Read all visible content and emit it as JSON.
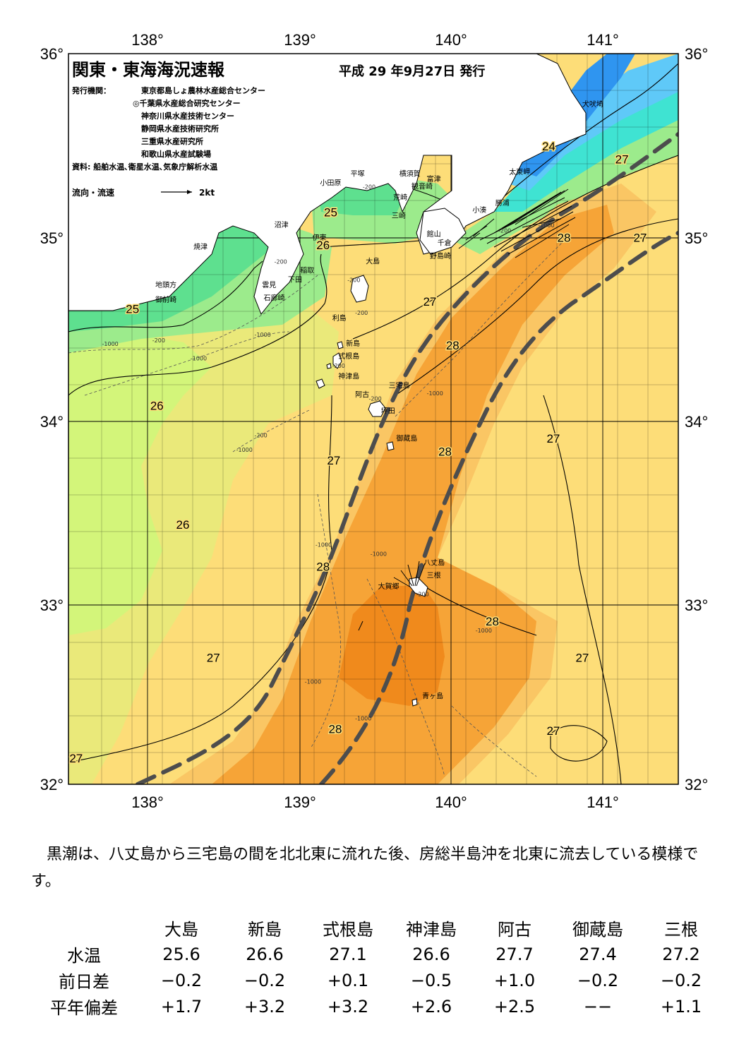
{
  "header": {
    "title": "関東・東海海況速報",
    "date": "平成 29 年9月27日 発行",
    "issuer_label": "発行機関：",
    "issuers": [
      "東京都島しょ農林水産総合センター",
      "◎千葉県水産総合研究センター",
      "神奈川県水産技術センター",
      "静岡県水産技術研究所",
      "三重県水産研究所",
      "和歌山県水産試験場"
    ],
    "source": "資料: 船舶水温､衛星水温､気象庁解析水温",
    "legend_label": "流向・流速",
    "legend_scale": "2kt"
  },
  "axes": {
    "lon_ticks": [
      "138°",
      "139°",
      "140°",
      "141°"
    ],
    "lat_ticks": [
      "36°",
      "35°",
      "34°",
      "33°",
      "32°"
    ]
  },
  "places": [
    {
      "name": "犬吠埼",
      "lon": 140.87,
      "lat": 35.71
    },
    {
      "name": "太東岬",
      "lon": 140.39,
      "lat": 35.34
    },
    {
      "name": "勝浦",
      "lon": 140.3,
      "lat": 35.17
    },
    {
      "name": "小湊",
      "lon": 140.15,
      "lat": 35.13
    },
    {
      "name": "富津",
      "lon": 139.85,
      "lat": 35.3
    },
    {
      "name": "館山",
      "lon": 139.85,
      "lat": 35.0
    },
    {
      "name": "千倉",
      "lon": 139.92,
      "lat": 34.95
    },
    {
      "name": "野島崎",
      "lon": 139.87,
      "lat": 34.88
    },
    {
      "name": "横須賀",
      "lon": 139.67,
      "lat": 35.33
    },
    {
      "name": "観音崎",
      "lon": 139.75,
      "lat": 35.26
    },
    {
      "name": "荒崎",
      "lon": 139.63,
      "lat": 35.2
    },
    {
      "name": "三崎",
      "lon": 139.62,
      "lat": 35.1
    },
    {
      "name": "平塚",
      "lon": 139.35,
      "lat": 35.33
    },
    {
      "name": "小田原",
      "lon": 139.15,
      "lat": 35.28
    },
    {
      "name": "沼津",
      "lon": 138.85,
      "lat": 35.05
    },
    {
      "name": "伊東",
      "lon": 139.1,
      "lat": 34.98
    },
    {
      "name": "焼津",
      "lon": 138.32,
      "lat": 34.93
    },
    {
      "name": "稲取",
      "lon": 139.02,
      "lat": 34.8
    },
    {
      "name": "下田",
      "lon": 138.94,
      "lat": 34.75
    },
    {
      "name": "雲見",
      "lon": 138.77,
      "lat": 34.72
    },
    {
      "name": "石廊崎",
      "lon": 138.78,
      "lat": 34.65
    },
    {
      "name": "地頭方",
      "lon": 138.07,
      "lat": 34.72
    },
    {
      "name": "御前崎",
      "lon": 138.07,
      "lat": 34.64
    },
    {
      "name": "大島",
      "lon": 139.45,
      "lat": 34.85
    },
    {
      "name": "利島",
      "lon": 139.23,
      "lat": 34.54
    },
    {
      "name": "新島",
      "lon": 139.32,
      "lat": 34.4
    },
    {
      "name": "式根島",
      "lon": 139.27,
      "lat": 34.33
    },
    {
      "name": "神津島",
      "lon": 139.27,
      "lat": 34.22
    },
    {
      "name": "三宅島",
      "lon": 139.6,
      "lat": 34.17
    },
    {
      "name": "阿古",
      "lon": 139.38,
      "lat": 34.12
    },
    {
      "name": "坪田",
      "lon": 139.55,
      "lat": 34.03
    },
    {
      "name": "御蔵島",
      "lon": 139.65,
      "lat": 33.88
    },
    {
      "name": "八丈島",
      "lon": 139.83,
      "lat": 33.2
    },
    {
      "name": "三根",
      "lon": 139.85,
      "lat": 33.13
    },
    {
      "name": "大賀郷",
      "lon": 139.53,
      "lat": 33.07
    },
    {
      "name": "青ヶ島",
      "lon": 139.82,
      "lat": 32.47
    }
  ],
  "temperature_labels": [
    {
      "text": "24",
      "lon": 140.65,
      "lat": 35.47
    },
    {
      "text": "25",
      "lon": 139.22,
      "lat": 35.11
    },
    {
      "text": "25",
      "lon": 137.92,
      "lat": 34.58
    },
    {
      "text": "26",
      "lon": 139.17,
      "lat": 34.93
    },
    {
      "text": "26",
      "lon": 138.08,
      "lat": 34.05
    },
    {
      "text": "26",
      "lon": 138.25,
      "lat": 33.4
    },
    {
      "text": "27",
      "lon": 141.13,
      "lat": 35.4
    },
    {
      "text": "27",
      "lon": 141.25,
      "lat": 34.97
    },
    {
      "text": "27",
      "lon": 139.87,
      "lat": 34.62
    },
    {
      "text": "27",
      "lon": 139.24,
      "lat": 33.75
    },
    {
      "text": "27",
      "lon": 140.68,
      "lat": 33.87
    },
    {
      "text": "27",
      "lon": 138.45,
      "lat": 32.67
    },
    {
      "text": "27",
      "lon": 140.87,
      "lat": 32.67
    },
    {
      "text": "27",
      "lon": 140.68,
      "lat": 32.27
    },
    {
      "text": "27",
      "lon": 137.55,
      "lat": 32.12
    },
    {
      "text": "28",
      "lon": 140.75,
      "lat": 34.97
    },
    {
      "text": "28",
      "lon": 140.02,
      "lat": 34.38
    },
    {
      "text": "28",
      "lon": 139.97,
      "lat": 33.8
    },
    {
      "text": "28",
      "lon": 139.17,
      "lat": 33.17
    },
    {
      "text": "28",
      "lon": 140.28,
      "lat": 32.87
    },
    {
      "text": "28",
      "lon": 139.25,
      "lat": 32.28
    }
  ],
  "depth_labels": [
    {
      "text": "-200",
      "lon": 139.43,
      "lat": 35.26
    },
    {
      "text": "-200",
      "lon": 139.33,
      "lat": 34.75
    },
    {
      "text": "-200",
      "lon": 139.38,
      "lat": 34.57
    },
    {
      "text": "-200",
      "lon": 138.85,
      "lat": 34.85
    },
    {
      "text": "-200",
      "lon": 138.05,
      "lat": 34.42
    },
    {
      "text": "-200",
      "lon": 138.72,
      "lat": 33.9
    },
    {
      "text": "-200",
      "lon": 139.23,
      "lat": 34.28
    },
    {
      "text": "-200",
      "lon": 139.47,
      "lat": 34.1
    },
    {
      "text": "-200",
      "lon": 139.78,
      "lat": 33.03
    },
    {
      "text": "-200",
      "lon": 140.32,
      "lat": 35.02
    },
    {
      "text": "-1000",
      "lon": 137.72,
      "lat": 34.4
    },
    {
      "text": "-1000",
      "lon": 138.3,
      "lat": 34.32
    },
    {
      "text": "-1000",
      "lon": 138.72,
      "lat": 34.45
    },
    {
      "text": "-1000",
      "lon": 138.6,
      "lat": 33.82
    },
    {
      "text": "-1000",
      "lon": 139.12,
      "lat": 33.3
    },
    {
      "text": "-1000",
      "lon": 139.05,
      "lat": 32.55
    },
    {
      "text": "-1000",
      "lon": 139.38,
      "lat": 32.35
    },
    {
      "text": "-1000",
      "lon": 139.85,
      "lat": 34.13
    },
    {
      "text": "-1000",
      "lon": 139.48,
      "lat": 33.25
    },
    {
      "text": "-1000",
      "lon": 140.17,
      "lat": 32.83
    },
    {
      "text": "-1000",
      "lon": 140.58,
      "lat": 35.05
    }
  ],
  "colors": {
    "t_orange_dark": "#f08a1c",
    "t_orange": "#f6a437",
    "t_orange_light": "#fac664",
    "t_yellow": "#fddd78",
    "t_yellow_green": "#eae97a",
    "t_light_green": "#d3f57a",
    "t_green": "#9ceb8c",
    "t_green_dark": "#5ee08f",
    "t_cyan": "#3fe3d2",
    "t_blue_light": "#5fc9f8",
    "t_blue": "#2f95f0",
    "land": "#ffffff",
    "kuroshio_axis": "#4d4d4d"
  },
  "summary": "黒潮は、八丈島から三宅島の間を北北東に流れた後、房総半島沖を北東に流去している模様です。",
  "table": {
    "stations": [
      "大島",
      "新島",
      "式根島",
      "神津島",
      "阿古",
      "御蔵島",
      "三根"
    ],
    "rows": [
      {
        "label": "水温",
        "values": [
          "25.6",
          "26.6",
          "27.1",
          "26.6",
          "27.7",
          "27.4",
          "27.2"
        ]
      },
      {
        "label": "前日差",
        "values": [
          "−0.2",
          "−0.2",
          "+0.1",
          "−0.5",
          "+1.0",
          "−0.2",
          "−0.2"
        ]
      },
      {
        "label": "平年偏差",
        "values": [
          "+1.7",
          "+3.2",
          "+3.2",
          "+2.6",
          "+2.5",
          "−−",
          "+1.1"
        ]
      }
    ]
  }
}
